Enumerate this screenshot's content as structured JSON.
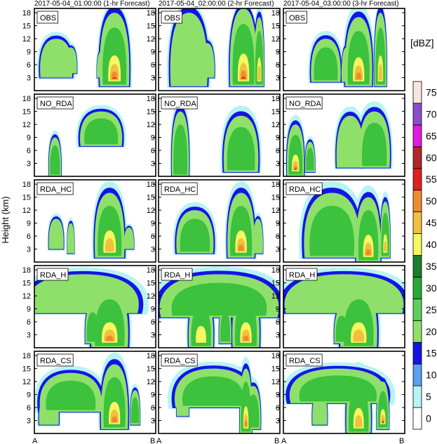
{
  "figure": {
    "ylabel": "Height (km)",
    "colorbar_unit": "[dBZ]"
  },
  "columns": [
    {
      "title": "2017-05-04_01:00:00 (1-hr Forecast)"
    },
    {
      "title": "2017-05-04_02:00:00 (2-hr Forecast)"
    },
    {
      "title": "2017-05-04_03:00:00 (3-hr Forecast)"
    }
  ],
  "rows": [
    {
      "label": "OBS"
    },
    {
      "label": "NO_RDA"
    },
    {
      "label": "RDA_HC"
    },
    {
      "label": "RDA_H"
    },
    {
      "label": "RDA_CS"
    }
  ],
  "x_axis": {
    "start_label": "A",
    "end_label": "B"
  },
  "colors": {
    "lt10": "#b7f3f5",
    "10": "#1414e8",
    "15": "#8ee06a",
    "20": "#3cc23c",
    "35": "#f7f760",
    "40": "#f0c040",
    "45": "#f08a30",
    "50": "#e02020",
    "60": "#b02828",
    "65": "#e01ce0",
    "70": "#8c4cd0",
    "75": "#f7e6dc"
  },
  "chart_data": {
    "type": "heatmap",
    "title": "",
    "ylabel": "Height (km)",
    "y_ticks": [
      3,
      6,
      9,
      12,
      15,
      18
    ],
    "ylim": [
      0,
      19
    ],
    "x_endpoints": [
      "A",
      "B"
    ],
    "panels_layout": "5 rows x 3 columns",
    "colorbar": {
      "unit": "[dBZ]",
      "levels": [
        0,
        5,
        10,
        15,
        20,
        25,
        30,
        35,
        40,
        45,
        50,
        55,
        60,
        65,
        70,
        75
      ],
      "colors": [
        "#ffffff",
        "#b7f3f5",
        "#5aa0f0",
        "#1414e8",
        "#8ee06a",
        "#5cd05c",
        "#2aa83a",
        "#1a7e2a",
        "#f7f760",
        "#f0c040",
        "#f08a30",
        "#e02020",
        "#b02828",
        "#e01ce0",
        "#8c4cd0",
        "#f7e6dc"
      ]
    },
    "panels": [
      {
        "row": "OBS",
        "column": "2017-05-04_01:00:00 (1-hr Forecast)",
        "max_height_km": 18,
        "max_dbz": 55
      },
      {
        "row": "OBS",
        "column": "2017-05-04_02:00:00 (2-hr Forecast)",
        "max_height_km": 19,
        "max_dbz": 60
      },
      {
        "row": "OBS",
        "column": "2017-05-04_03:00:00 (3-hr Forecast)",
        "max_height_km": 18,
        "max_dbz": 45
      },
      {
        "row": "NO_RDA",
        "column": "2017-05-04_01:00:00 (1-hr Forecast)",
        "max_height_km": 15,
        "max_dbz": 25
      },
      {
        "row": "NO_RDA",
        "column": "2017-05-04_02:00:00 (2-hr Forecast)",
        "max_height_km": 14,
        "max_dbz": 25
      },
      {
        "row": "NO_RDA",
        "column": "2017-05-04_03:00:00 (3-hr Forecast)",
        "max_height_km": 15,
        "max_dbz": 55
      },
      {
        "row": "RDA_HC",
        "column": "2017-05-04_01:00:00 (1-hr Forecast)",
        "max_height_km": 16,
        "max_dbz": 40
      },
      {
        "row": "RDA_HC",
        "column": "2017-05-04_02:00:00 (2-hr Forecast)",
        "max_height_km": 16,
        "max_dbz": 45
      },
      {
        "row": "RDA_HC",
        "column": "2017-05-04_03:00:00 (3-hr Forecast)",
        "max_height_km": 16,
        "max_dbz": 60
      },
      {
        "row": "RDA_H",
        "column": "2017-05-04_01:00:00 (1-hr Forecast)",
        "max_height_km": 17,
        "max_dbz": 45
      },
      {
        "row": "RDA_H",
        "column": "2017-05-04_02:00:00 (2-hr Forecast)",
        "max_height_km": 17,
        "max_dbz": 45
      },
      {
        "row": "RDA_H",
        "column": "2017-05-04_03:00:00 (3-hr Forecast)",
        "max_height_km": 17,
        "max_dbz": 40
      },
      {
        "row": "RDA_CS",
        "column": "2017-05-04_01:00:00 (1-hr Forecast)",
        "max_height_km": 16,
        "max_dbz": 55
      },
      {
        "row": "RDA_CS",
        "column": "2017-05-04_02:00:00 (2-hr Forecast)",
        "max_height_km": 15,
        "max_dbz": 55
      },
      {
        "row": "RDA_CS",
        "column": "2017-05-04_03:00:00 (3-hr Forecast)",
        "max_height_km": 15,
        "max_dbz": 55
      }
    ]
  }
}
